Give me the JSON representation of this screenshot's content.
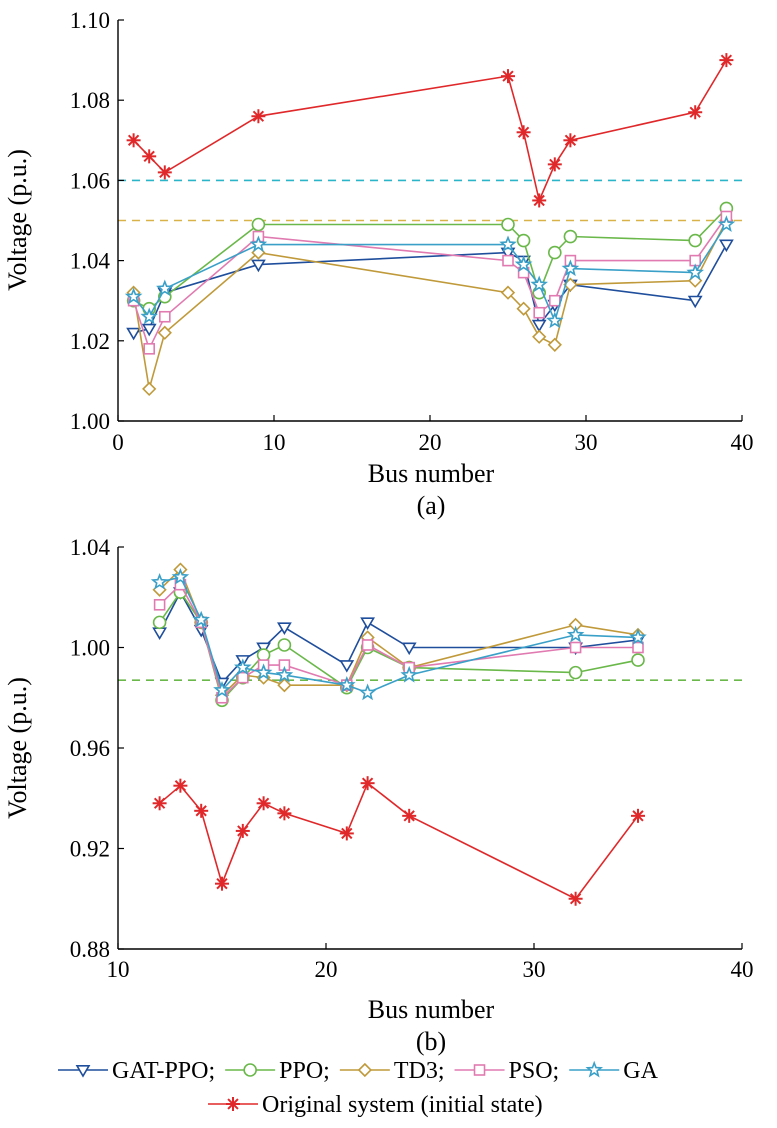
{
  "colors": {
    "gat_ppo": "#1f4e9c",
    "ppo": "#6ab84a",
    "td3": "#c09a3a",
    "pso": "#e07ab0",
    "ga": "#3aa0c8",
    "original": "#e0282a",
    "limit_a_upper": "#2bb5c9",
    "limit_a_lower": "#d9b24a",
    "limit_b": "#6ab84a"
  },
  "legend": {
    "entries": [
      {
        "key": "gat_ppo",
        "label": "GAT-PPO;",
        "marker": "triangle-down"
      },
      {
        "key": "ppo",
        "label": "PPO;",
        "marker": "circle"
      },
      {
        "key": "td3",
        "label": "TD3;",
        "marker": "diamond"
      },
      {
        "key": "pso",
        "label": "PSO;",
        "marker": "square"
      },
      {
        "key": "ga",
        "label": "GA",
        "marker": "star"
      },
      {
        "key": "original",
        "label": "Original system (initial state)",
        "marker": "asterisk"
      }
    ]
  },
  "chart_data": [
    {
      "type": "line",
      "panel_label": "(a)",
      "xlabel": "Bus number",
      "ylabel": "Voltage (p.u.)",
      "xlim": [
        0,
        40
      ],
      "ylim": [
        1.0,
        1.1
      ],
      "xticks": [
        0,
        10,
        20,
        30,
        40
      ],
      "yticks": [
        "1.00",
        "1.02",
        "1.04",
        "1.06",
        "1.08",
        "1.10"
      ],
      "x": [
        1,
        2,
        3,
        9,
        25,
        26,
        27,
        28,
        29,
        37,
        39
      ],
      "reference_lines": [
        {
          "y": 1.06,
          "color_key": "limit_a_upper"
        },
        {
          "y": 1.05,
          "color_key": "limit_a_lower"
        }
      ],
      "series": [
        {
          "key": "original",
          "values": [
            1.07,
            1.066,
            1.062,
            1.076,
            1.086,
            1.072,
            1.055,
            1.064,
            1.07,
            1.077,
            1.09
          ]
        },
        {
          "key": "gat_ppo",
          "values": [
            1.022,
            1.023,
            1.032,
            1.039,
            1.042,
            1.04,
            1.024,
            1.029,
            1.034,
            1.03,
            1.044
          ]
        },
        {
          "key": "ppo",
          "values": [
            1.03,
            1.028,
            1.031,
            1.049,
            1.049,
            1.045,
            1.032,
            1.042,
            1.046,
            1.045,
            1.053
          ]
        },
        {
          "key": "td3",
          "values": [
            1.032,
            1.008,
            1.022,
            1.042,
            1.032,
            1.028,
            1.021,
            1.019,
            1.034,
            1.035,
            1.05
          ]
        },
        {
          "key": "pso",
          "values": [
            1.03,
            1.018,
            1.026,
            1.046,
            1.04,
            1.037,
            1.027,
            1.03,
            1.04,
            1.04,
            1.051
          ]
        },
        {
          "key": "ga",
          "values": [
            1.031,
            1.026,
            1.033,
            1.044,
            1.044,
            1.039,
            1.034,
            1.025,
            1.038,
            1.037,
            1.049
          ]
        }
      ]
    },
    {
      "type": "line",
      "panel_label": "(b)",
      "xlabel": "Bus number",
      "ylabel": "Voltage (p.u.)",
      "xlim": [
        10,
        40
      ],
      "ylim": [
        0.88,
        1.04
      ],
      "xticks": [
        10,
        20,
        30,
        40
      ],
      "yticks": [
        "0.88",
        "0.92",
        "0.96",
        "1.00",
        "1.04"
      ],
      "x": [
        12,
        13,
        14,
        15,
        16,
        17,
        18,
        21,
        22,
        24,
        32,
        35
      ],
      "reference_lines": [
        {
          "y": 0.987,
          "color_key": "limit_b"
        }
      ],
      "series": [
        {
          "key": "original",
          "values": [
            0.938,
            0.945,
            0.935,
            0.906,
            0.927,
            0.938,
            0.934,
            0.926,
            0.946,
            0.933,
            0.9,
            0.933
          ]
        },
        {
          "key": "gat_ppo",
          "values": [
            1.006,
            1.022,
            1.007,
            0.986,
            0.995,
            1.0,
            1.008,
            0.993,
            1.01,
            1.0,
            1.0,
            1.003
          ]
        },
        {
          "key": "ppo",
          "values": [
            1.01,
            1.022,
            1.01,
            0.979,
            0.988,
            0.997,
            1.001,
            0.984,
            1.0,
            0.992,
            0.99,
            0.995
          ]
        },
        {
          "key": "td3",
          "values": [
            1.023,
            1.031,
            1.01,
            0.981,
            0.989,
            0.988,
            0.985,
            0.985,
            1.004,
            0.992,
            1.009,
            1.005
          ]
        },
        {
          "key": "pso",
          "values": [
            1.017,
            1.025,
            1.01,
            0.98,
            0.988,
            0.993,
            0.993,
            0.985,
            1.001,
            0.992,
            1.0,
            1.0
          ]
        },
        {
          "key": "ga",
          "values": [
            1.026,
            1.028,
            1.011,
            0.983,
            0.992,
            0.99,
            0.989,
            0.985,
            0.982,
            0.989,
            1.005,
            1.004
          ]
        }
      ]
    }
  ]
}
